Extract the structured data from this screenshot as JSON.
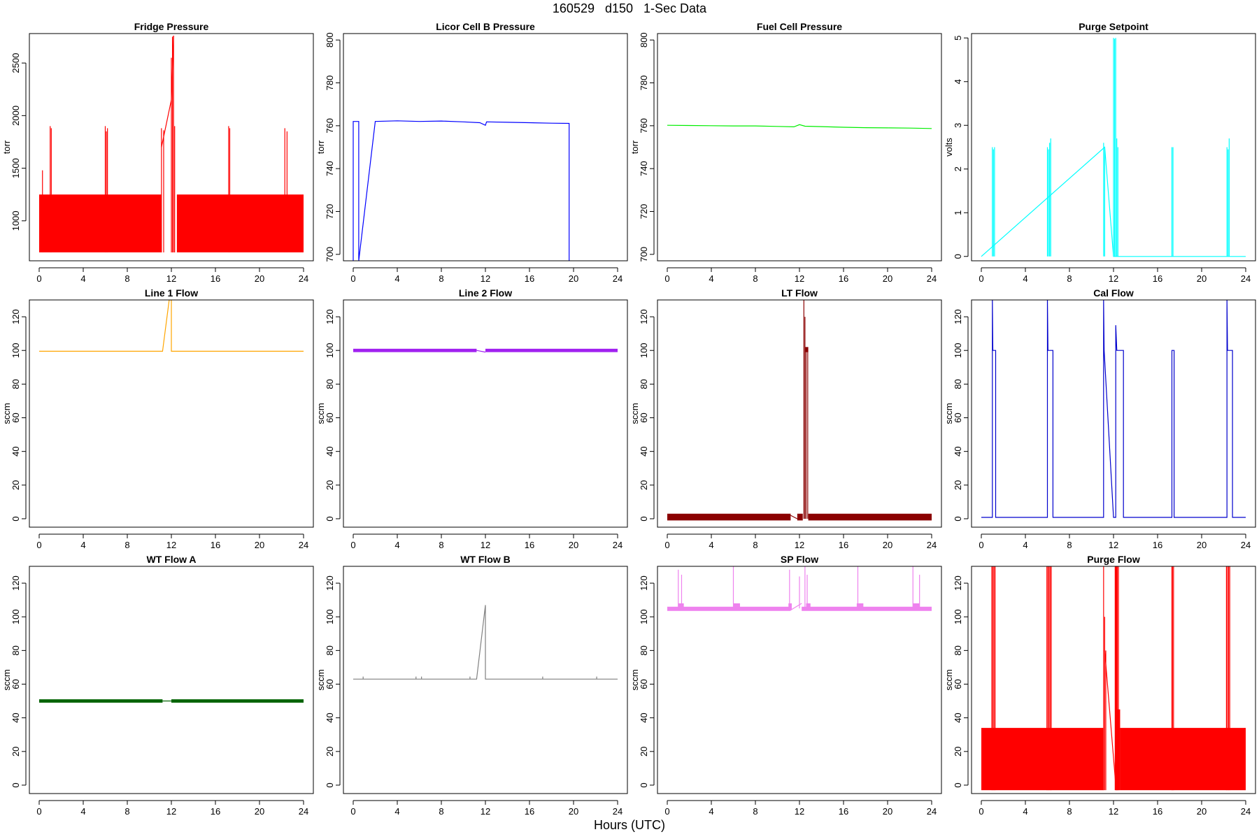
{
  "page": {
    "title": "160529   d150   1-Sec Data",
    "xlabel": "Hours (UTC)"
  },
  "chart_data": [
    {
      "type": "line",
      "title": "Fridge Pressure",
      "ylabel": "torr",
      "color": "#ff0000",
      "xlim": [
        0,
        24
      ],
      "ylim": [
        620,
        2780
      ],
      "xticks": [
        0,
        4,
        8,
        12,
        16,
        20,
        24
      ],
      "yticks": [
        1000,
        1500,
        2000,
        2500
      ],
      "series": [
        {
          "kind": "band",
          "x": [
            0,
            11.1
          ],
          "lo": 700,
          "hi": 1250
        },
        {
          "kind": "band",
          "x": [
            12.5,
            24
          ],
          "lo": 700,
          "hi": 1250
        },
        {
          "kind": "spikes",
          "x": [
            0.3,
            1.0,
            1.1,
            6.0,
            6.1,
            6.2,
            11.1,
            11.3,
            12.0,
            12.1,
            12.2,
            12.3,
            17.2,
            17.3,
            22.3,
            22.5
          ],
          "lo": 700,
          "hi": [
            1480,
            1900,
            1880,
            1900,
            1850,
            1880,
            1880,
            1860,
            2550,
            2750,
            2760,
            1900,
            1900,
            1880,
            1880,
            1850
          ]
        },
        {
          "kind": "line",
          "x": [
            11.1,
            11.3,
            12.0,
            12.2
          ],
          "y": [
            1700,
            1800,
            2150,
            2760
          ]
        }
      ]
    },
    {
      "type": "line",
      "title": "Licor Cell B Pressure",
      "ylabel": "torr",
      "color": "#0000ff",
      "xlim": [
        0,
        24
      ],
      "ylim": [
        697,
        803
      ],
      "xticks": [
        0,
        4,
        8,
        12,
        16,
        20,
        24
      ],
      "yticks": [
        700,
        720,
        740,
        760,
        780,
        800
      ],
      "series": [
        {
          "kind": "line",
          "x": [
            0,
            0,
            0.5,
            0.5,
            2,
            4,
            6,
            8,
            10,
            11.5,
            12,
            12.1,
            14,
            16,
            18,
            19.6,
            19.6
          ],
          "y": [
            697,
            762,
            762,
            697,
            762,
            762.3,
            762,
            762.2,
            761.8,
            761.4,
            760.2,
            761.8,
            761.6,
            761.4,
            761.2,
            761.1,
            697
          ]
        }
      ]
    },
    {
      "type": "line",
      "title": "Fuel Cell Pressure",
      "ylabel": "torr",
      "color": "#00ee00",
      "xlim": [
        0,
        24
      ],
      "ylim": [
        697,
        803
      ],
      "xticks": [
        0,
        4,
        8,
        12,
        16,
        20,
        24
      ],
      "yticks": [
        700,
        720,
        740,
        760,
        780,
        800
      ],
      "series": [
        {
          "kind": "line",
          "x": [
            0,
            2,
            4,
            6,
            8,
            10,
            11.5,
            12,
            12.5,
            14,
            16,
            18,
            20,
            22,
            24
          ],
          "y": [
            760.2,
            760.1,
            760.0,
            759.9,
            759.9,
            759.7,
            759.5,
            760.5,
            759.8,
            759.6,
            759.3,
            759.1,
            759.0,
            758.9,
            758.7
          ]
        }
      ]
    },
    {
      "type": "line",
      "title": "Purge Setpoint",
      "ylabel": "volts",
      "color": "#00ffff",
      "xlim": [
        0,
        24
      ],
      "ylim": [
        -0.1,
        5.1
      ],
      "xticks": [
        0,
        4,
        8,
        12,
        16,
        20,
        24
      ],
      "yticks": [
        0,
        1,
        2,
        3,
        4,
        5
      ],
      "series": [
        {
          "kind": "spikes",
          "x": [
            1.0,
            1.1,
            1.2,
            6.0,
            6.1,
            6.2,
            6.3,
            11.1,
            11.2,
            12.0,
            12.1,
            12.2,
            12.3,
            12.4,
            17.3,
            17.4,
            22.3,
            22.4,
            22.5
          ],
          "lo": 0,
          "hi": [
            2.5,
            2.45,
            2.5,
            2.5,
            2.45,
            2.6,
            2.7,
            2.6,
            2.5,
            5.0,
            4.98,
            5.0,
            2.7,
            2.5,
            2.5,
            2.5,
            2.5,
            2.45,
            2.7
          ]
        },
        {
          "kind": "line",
          "x": [
            0,
            11.2,
            12.0,
            24
          ],
          "y": [
            0,
            2.5,
            0,
            0
          ]
        }
      ]
    },
    {
      "type": "line",
      "title": "Line 1 Flow",
      "ylabel": "sccm",
      "color": "#ffa500",
      "xlim": [
        0,
        24
      ],
      "ylim": [
        -5,
        130
      ],
      "xticks": [
        0,
        4,
        8,
        12,
        16,
        20,
        24
      ],
      "yticks": [
        0,
        20,
        40,
        60,
        80,
        100,
        120
      ],
      "series": [
        {
          "kind": "line",
          "x": [
            0,
            11.2,
            11.8,
            12.0,
            12.0,
            24
          ],
          "y": [
            99.5,
            99.5,
            130,
            130,
            99.5,
            99.5
          ]
        }
      ]
    },
    {
      "type": "line",
      "title": "Line 2 Flow",
      "ylabel": "sccm",
      "color": "#a020f0",
      "xlim": [
        0,
        24
      ],
      "ylim": [
        -5,
        130
      ],
      "xticks": [
        0,
        4,
        8,
        12,
        16,
        20,
        24
      ],
      "yticks": [
        0,
        20,
        40,
        60,
        80,
        100,
        120
      ],
      "series": [
        {
          "kind": "band",
          "x": [
            0,
            11.2
          ],
          "lo": 99,
          "hi": 101
        },
        {
          "kind": "band",
          "x": [
            12.0,
            24
          ],
          "lo": 99,
          "hi": 101
        },
        {
          "kind": "line",
          "x": [
            11.2,
            12.0
          ],
          "y": [
            100,
            99
          ]
        }
      ]
    },
    {
      "type": "line",
      "title": "LT Flow",
      "ylabel": "sccm",
      "color": "#8b0000",
      "xlim": [
        0,
        24
      ],
      "ylim": [
        -5,
        130
      ],
      "xticks": [
        0,
        4,
        8,
        12,
        16,
        20,
        24
      ],
      "yticks": [
        0,
        20,
        40,
        60,
        80,
        100,
        120
      ],
      "series": [
        {
          "kind": "band",
          "x": [
            0,
            11.2
          ],
          "lo": -1,
          "hi": 3
        },
        {
          "kind": "band",
          "x": [
            11.8,
            12.3
          ],
          "lo": -1,
          "hi": 3
        },
        {
          "kind": "band",
          "x": [
            12.8,
            24
          ],
          "lo": -1,
          "hi": 3
        },
        {
          "kind": "band",
          "x": [
            12.5,
            12.8
          ],
          "lo": 99,
          "hi": 102
        },
        {
          "kind": "line",
          "x": [
            11.2,
            11.8
          ],
          "y": [
            2,
            0
          ]
        },
        {
          "kind": "spikes",
          "x": [
            12.4,
            12.5,
            12.6,
            12.75
          ],
          "lo": 0,
          "hi": [
            130,
            120,
            102,
            102
          ]
        }
      ]
    },
    {
      "type": "line",
      "title": "Cal Flow",
      "ylabel": "sccm",
      "color": "#0000cd",
      "xlim": [
        0,
        24
      ],
      "ylim": [
        -5,
        130
      ],
      "xticks": [
        0,
        4,
        8,
        12,
        16,
        20,
        24
      ],
      "yticks": [
        0,
        20,
        40,
        60,
        80,
        100,
        120
      ],
      "series": [
        {
          "kind": "line",
          "x": [
            0,
            1.0,
            1.0,
            1.05,
            1.3,
            1.3,
            6.0,
            6.0,
            6.05,
            6.5,
            6.5,
            11.1,
            11.1,
            11.15,
            12.0,
            12.2,
            12.2,
            12.3,
            12.3,
            12.9,
            12.9,
            17.3,
            17.3,
            17.35,
            17.5,
            17.5,
            22.3,
            22.3,
            22.35,
            22.8,
            22.8,
            24
          ],
          "y": [
            0.8,
            0.8,
            130,
            100,
            100,
            0.8,
            0.8,
            130,
            100,
            100,
            0.8,
            0.8,
            130,
            100,
            0.8,
            0.8,
            115,
            100,
            100,
            100,
            0.8,
            0.8,
            100,
            100,
            100,
            0.8,
            0.8,
            130,
            100,
            100,
            0.8,
            0.8
          ]
        }
      ]
    },
    {
      "type": "line",
      "title": "WT Flow A",
      "ylabel": "sccm",
      "color": "#006400",
      "xlim": [
        0,
        24
      ],
      "ylim": [
        -5,
        130
      ],
      "xticks": [
        0,
        4,
        8,
        12,
        16,
        20,
        24
      ],
      "yticks": [
        0,
        20,
        40,
        60,
        80,
        100,
        120
      ],
      "series": [
        {
          "kind": "band",
          "x": [
            0,
            11.2
          ],
          "lo": 49,
          "hi": 51
        },
        {
          "kind": "band",
          "x": [
            12.0,
            24
          ],
          "lo": 49,
          "hi": 51
        },
        {
          "kind": "line",
          "x": [
            11.2,
            12.0
          ],
          "y": [
            50,
            50
          ]
        }
      ]
    },
    {
      "type": "line",
      "title": "WT Flow B",
      "ylabel": "sccm",
      "color": "#808080",
      "xlim": [
        0,
        24
      ],
      "ylim": [
        -5,
        130
      ],
      "xticks": [
        0,
        4,
        8,
        12,
        16,
        20,
        24
      ],
      "yticks": [
        0,
        20,
        40,
        60,
        80,
        100,
        120
      ],
      "series": [
        {
          "kind": "line",
          "x": [
            0,
            2,
            4,
            6,
            8,
            10,
            11.2,
            12.0,
            12.0,
            14,
            16,
            18,
            20,
            22,
            24
          ],
          "y": [
            63,
            63,
            63,
            63,
            63,
            63,
            63,
            107,
            63,
            63,
            63,
            63,
            63,
            63,
            63
          ]
        },
        {
          "kind": "spikes",
          "x": [
            0.9,
            5.7,
            6.2,
            10.6,
            17.2,
            22.1
          ],
          "lo": 63,
          "hi": [
            64.5,
            64.5,
            64.5,
            64.5,
            64.5,
            64.5
          ]
        }
      ]
    },
    {
      "type": "line",
      "title": "SP Flow",
      "ylabel": "sccm",
      "color": "#ee82ee",
      "xlim": [
        0,
        24
      ],
      "ylim": [
        -5,
        130
      ],
      "xticks": [
        0,
        4,
        8,
        12,
        16,
        20,
        24
      ],
      "yticks": [
        0,
        20,
        40,
        60,
        80,
        100,
        120
      ],
      "series": [
        {
          "kind": "band",
          "x": [
            0,
            11.2
          ],
          "lo": 103.5,
          "hi": 106
        },
        {
          "kind": "band",
          "x": [
            12.2,
            24
          ],
          "lo": 103.5,
          "hi": 106
        },
        {
          "kind": "band",
          "x": [
            1.0,
            1.5
          ],
          "lo": 104,
          "hi": 108
        },
        {
          "kind": "band",
          "x": [
            6.0,
            6.6
          ],
          "lo": 104,
          "hi": 108
        },
        {
          "kind": "band",
          "x": [
            11.0,
            11.3
          ],
          "lo": 104,
          "hi": 108
        },
        {
          "kind": "band",
          "x": [
            12.6,
            13.0
          ],
          "lo": 104,
          "hi": 108
        },
        {
          "kind": "band",
          "x": [
            17.2,
            17.8
          ],
          "lo": 104,
          "hi": 108
        },
        {
          "kind": "band",
          "x": [
            22.3,
            22.9
          ],
          "lo": 104,
          "hi": 108
        },
        {
          "kind": "line",
          "x": [
            11.2,
            12.2
          ],
          "y": [
            104,
            108
          ]
        },
        {
          "kind": "spikes",
          "x": [
            1.0,
            1.3,
            6.0,
            11.1,
            12.0,
            12.5,
            12.7,
            17.3,
            22.3,
            22.9
          ],
          "lo": 105,
          "hi": [
            128,
            125,
            130,
            128,
            124,
            130,
            125,
            130,
            130,
            125
          ]
        }
      ]
    },
    {
      "type": "line",
      "title": "Purge Flow",
      "ylabel": "sccm",
      "color": "#ff0000",
      "xlim": [
        0,
        24
      ],
      "ylim": [
        -5,
        130
      ],
      "xticks": [
        0,
        4,
        8,
        12,
        16,
        20,
        24
      ],
      "yticks": [
        0,
        20,
        40,
        60,
        80,
        100,
        120
      ],
      "series": [
        {
          "kind": "band",
          "x": [
            0,
            11.1
          ],
          "lo": -3,
          "hi": 34
        },
        {
          "kind": "band",
          "x": [
            12.6,
            24
          ],
          "lo": -3,
          "hi": 34
        },
        {
          "kind": "band",
          "x": [
            12.2,
            12.6
          ],
          "lo": -3,
          "hi": 45
        },
        {
          "kind": "spikes",
          "x": [
            0.95,
            1.05,
            1.15,
            1.25,
            5.95,
            6.05,
            6.15,
            6.25,
            6.35,
            11.1,
            11.2,
            11.3,
            12.15,
            12.2,
            12.25,
            12.3,
            12.35,
            12.45,
            17.3,
            17.35,
            17.45,
            22.25,
            22.35,
            22.45,
            22.55
          ],
          "lo": -3,
          "hi": [
            130,
            130,
            130,
            130,
            130,
            130,
            130,
            130,
            130,
            130,
            100,
            80,
            130,
            130,
            130,
            130,
            130,
            130,
            130,
            130,
            130,
            130,
            130,
            130,
            130
          ]
        },
        {
          "kind": "line",
          "x": [
            11.2,
            12.2
          ],
          "y": [
            80,
            0
          ]
        }
      ]
    }
  ]
}
